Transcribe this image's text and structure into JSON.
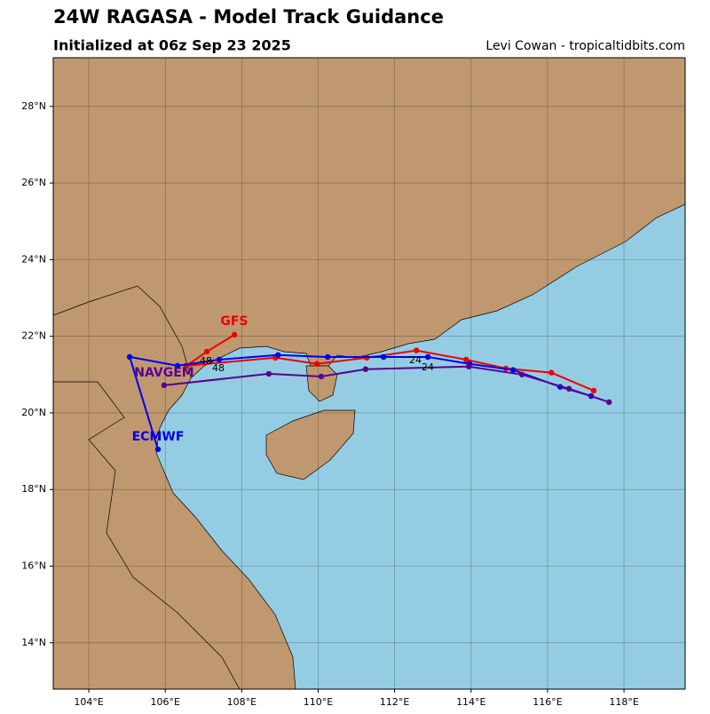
{
  "chart_data": {
    "type": "track",
    "title": "24W RAGASA - Model Track Guidance",
    "subtitle": "Initialized at 06z Sep 23 2025",
    "credit": "Levi Cowan - tropicaltidbits.com",
    "xlim": [
      103.07,
      119.6
    ],
    "ylim": [
      12.79,
      29.27
    ],
    "xticks": [
      {
        "value": 104,
        "label": "104°E"
      },
      {
        "value": 106,
        "label": "106°E"
      },
      {
        "value": 108,
        "label": "108°E"
      },
      {
        "value": 110,
        "label": "110°E"
      },
      {
        "value": 112,
        "label": "112°E"
      },
      {
        "value": 114,
        "label": "114°E"
      },
      {
        "value": 116,
        "label": "116°E"
      },
      {
        "value": 118,
        "label": "118°E"
      }
    ],
    "yticks": [
      {
        "value": 14,
        "label": "14°N"
      },
      {
        "value": 16,
        "label": "16°N"
      },
      {
        "value": 18,
        "label": "18°N"
      },
      {
        "value": 20,
        "label": "20°N"
      },
      {
        "value": 22,
        "label": "22°N"
      },
      {
        "value": 24,
        "label": "24°N"
      },
      {
        "value": 26,
        "label": "26°N"
      },
      {
        "value": 28,
        "label": "28°N"
      }
    ],
    "grid": true,
    "series": [
      {
        "name": "GFS",
        "color": "#ee0000",
        "x": [
          117.21,
          116.1,
          114.91,
          113.87,
          112.57,
          111.27,
          109.97,
          108.88,
          106.55,
          107.09,
          107.81
        ],
        "values": [
          20.58,
          21.05,
          21.16,
          21.39,
          21.63,
          21.44,
          21.28,
          21.44,
          21.23,
          21.6,
          22.04
        ]
      },
      {
        "name": "ECMWF",
        "color": "#0000ee",
        "x": [
          117.14,
          116.33,
          115.1,
          113.96,
          112.87,
          111.71,
          110.25,
          108.95,
          107.41,
          106.32,
          105.07,
          105.81
        ],
        "values": [
          20.44,
          20.68,
          21.12,
          21.28,
          21.46,
          21.46,
          21.46,
          21.51,
          21.39,
          21.23,
          21.46,
          19.05
        ]
      },
      {
        "name": "NAVGEM",
        "color": "#5a0090",
        "x": [
          117.61,
          116.56,
          115.33,
          113.94,
          111.24,
          110.08,
          108.71,
          105.97
        ],
        "values": [
          20.28,
          20.63,
          21.0,
          21.21,
          21.14,
          20.95,
          21.02,
          20.72
        ]
      }
    ],
    "annotations": [
      "48",
      "48",
      "24",
      "24"
    ]
  }
}
